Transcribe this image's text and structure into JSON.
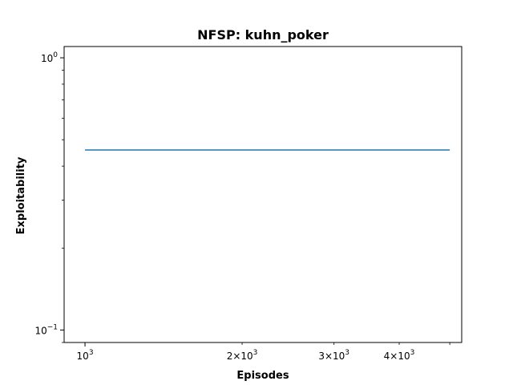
{
  "chart_data": {
    "type": "line",
    "title": "NFSP: kuhn_poker",
    "xlabel": "Episodes",
    "ylabel": "Exploitability",
    "xscale": "log",
    "yscale": "log",
    "xlim": [
      912,
      5270
    ],
    "ylim": [
      0.09,
      1.1
    ],
    "grid": false,
    "x_major_ticks": [
      {
        "value": 1000,
        "base": "10",
        "exp": "3",
        "prefix": ""
      }
    ],
    "x_minor_labeled_ticks": [
      {
        "value": 2000,
        "base": "10",
        "exp": "3",
        "prefix": "2×"
      },
      {
        "value": 3000,
        "base": "10",
        "exp": "3",
        "prefix": "3×"
      },
      {
        "value": 4000,
        "base": "10",
        "exp": "3",
        "prefix": "4×"
      }
    ],
    "x_minor_unlabeled_ticks": [
      5000
    ],
    "y_major_ticks": [
      {
        "value": 1.0,
        "base": "10",
        "exp": "0"
      },
      {
        "value": 0.1,
        "base": "10",
        "exp": "−1"
      }
    ],
    "series": [
      {
        "color": "#1f77b4",
        "x": [
          1000,
          5000
        ],
        "y": [
          0.4583,
          0.4583
        ]
      }
    ]
  }
}
